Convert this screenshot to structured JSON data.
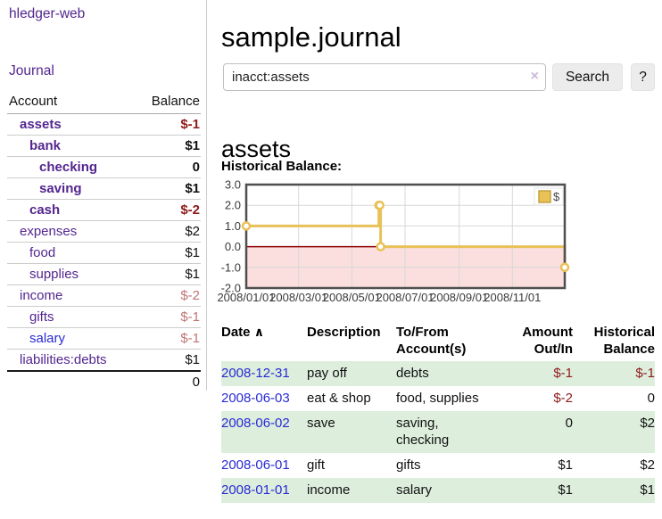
{
  "app": {
    "brand": "hledger-web",
    "nav": {
      "journal": "Journal"
    }
  },
  "sidebar": {
    "headers": {
      "account": "Account",
      "balance": "Balance"
    },
    "accounts": [
      {
        "name": "assets",
        "balance": "$-1"
      },
      {
        "name": "bank",
        "balance": "$1"
      },
      {
        "name": "checking",
        "balance": "0"
      },
      {
        "name": "saving",
        "balance": "$1"
      },
      {
        "name": "cash",
        "balance": "$-2"
      },
      {
        "name": "expenses",
        "balance": "$2"
      },
      {
        "name": "food",
        "balance": "$1"
      },
      {
        "name": "supplies",
        "balance": "$1"
      },
      {
        "name": "income",
        "balance": "$-2"
      },
      {
        "name": "gifts",
        "balance": "$-1"
      },
      {
        "name": "salary",
        "balance": "$-1"
      },
      {
        "name": "liabilities:debts",
        "balance": "$1"
      }
    ],
    "total": "0"
  },
  "main": {
    "title": "sample.journal",
    "search": {
      "value": "inacct:assets",
      "clear_icon": "×",
      "search_button": "Search",
      "help_button": "?"
    },
    "account_title": "assets",
    "section_label": "Historical Balance:"
  },
  "chart_data": {
    "type": "line",
    "step": true,
    "title": "Historical Balance",
    "series": [
      {
        "name": "$",
        "color": "#e8c157",
        "points": [
          [
            "2008-01-01",
            1
          ],
          [
            "2008-06-01",
            2
          ],
          [
            "2008-06-02",
            2
          ],
          [
            "2008-06-03",
            0
          ],
          [
            "2008-12-31",
            -1
          ]
        ]
      }
    ],
    "xlim": [
      "2008-01-01",
      "2008-12-31"
    ],
    "ylim": [
      -2,
      3
    ],
    "yticks": [
      {
        "v": 3,
        "label": "3.0"
      },
      {
        "v": 2,
        "label": "2.0"
      },
      {
        "v": 1,
        "label": "1.0"
      },
      {
        "v": 0,
        "label": "0.0"
      },
      {
        "v": -1,
        "label": "-1.0"
      },
      {
        "v": -2,
        "label": "-2.0"
      }
    ],
    "xticks": [
      {
        "x": "2008-01-01",
        "label": "2008/01/01"
      },
      {
        "x": "2008-03-01",
        "label": "2008/03/01"
      },
      {
        "x": "2008-05-01",
        "label": "2008/05/01"
      },
      {
        "x": "2008-07-01",
        "label": "2008/07/01"
      },
      {
        "x": "2008-09-01",
        "label": "2008/09/01"
      },
      {
        "x": "2008-11-01",
        "label": "2008/11/01"
      }
    ],
    "legend": {
      "position": "top-right",
      "entries": [
        "$"
      ]
    },
    "grid": true,
    "grid_color": "#d8d8d8",
    "zero_line_color": "#8b0000",
    "negative_region_fill": "#fbdede",
    "plot_border_color": "#4f4f4f",
    "legend_box_border": "#c6a23e"
  },
  "register": {
    "headers": {
      "date": "Date",
      "sort_icon": "∧",
      "description": "Description",
      "accounts": "To/From Account(s)",
      "amount": "Amount Out/In",
      "balance": "Historical Balance"
    },
    "rows": [
      {
        "date": "2008-12-31",
        "description": "pay off",
        "accounts": "debts",
        "amount": "$-1",
        "balance": "$-1"
      },
      {
        "date": "2008-06-03",
        "description": "eat & shop",
        "accounts": "food, supplies",
        "amount": "$-2",
        "balance": "0"
      },
      {
        "date": "2008-06-02",
        "description": "save",
        "accounts": "saving, checking",
        "amount": "0",
        "balance": "$2"
      },
      {
        "date": "2008-06-01",
        "description": "gift",
        "accounts": "gifts",
        "amount": "$1",
        "balance": "$2"
      },
      {
        "date": "2008-01-01",
        "description": "income",
        "accounts": "salary",
        "amount": "$1",
        "balance": "$1"
      }
    ]
  }
}
